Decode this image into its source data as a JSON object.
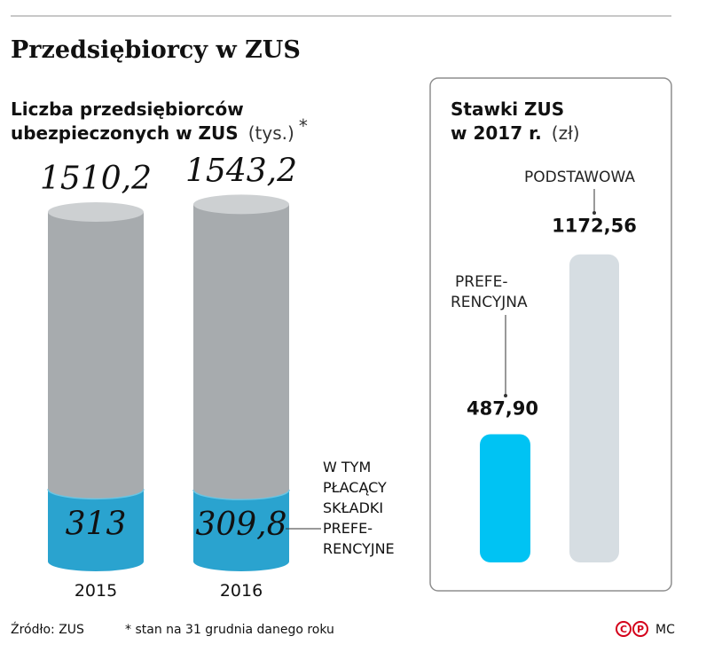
{
  "title": "Przedsiębiorcy w ZUS",
  "left_panel": {
    "subtitle_line1": "Liczba przedsiębiorców",
    "subtitle_line2": "ubezpieczonych w ZUS",
    "unit": "(tys.)",
    "asterisk": "*",
    "note_lines": [
      "W TYM",
      "PŁACĄCY",
      "SKŁADKI",
      "PREFE-",
      "RENCYJNE"
    ]
  },
  "right_panel": {
    "subtitle_line1": "Stawki ZUS",
    "subtitle_line2": "w 2017 r.",
    "unit": "(zł)",
    "labels": {
      "podstawowa": "PODSTAWOWA",
      "preferencyjna_line1": "PREFE-",
      "preferencyjna_line2": "RENCYJNA"
    }
  },
  "footer": {
    "source": "Źródło:  ZUS",
    "footnote": "* stan na 31 grudnia danego roku",
    "credit": "MC"
  },
  "colors": {
    "cylinder_gray": "#a7abae",
    "cylinder_top": "#cdd0d2",
    "cylinder_blue": "#2aa3cf",
    "cylinder_blue_top": "#6ac4e2",
    "rate_pref": "#00c3f3",
    "rate_basic": "#d6dde2",
    "brand_red": "#d4001a"
  },
  "chart_data": [
    {
      "type": "bar",
      "categories": [
        "2015",
        "2016"
      ],
      "series": [
        {
          "values": [
            1510.2,
            1543.2
          ]
        },
        {
          "values": [
            313,
            309.8
          ]
        }
      ],
      "labels_total": [
        "1510,2",
        "1543,2"
      ],
      "labels_pref": [
        "313",
        "309,8"
      ]
    },
    {
      "type": "bar",
      "categories": [
        "PREFERENCYJNA",
        "PODSTAWOWA"
      ],
      "values": [
        487.9,
        1172.56
      ],
      "labels": [
        "487,90",
        "1172,56"
      ]
    }
  ]
}
